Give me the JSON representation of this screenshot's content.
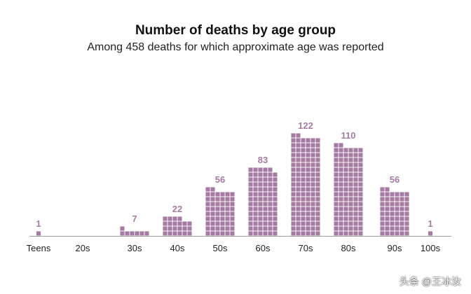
{
  "chart_data": {
    "type": "bar",
    "title": "Number of deaths by age group",
    "subtitle": "Among 458 deaths for which approximate age was reported",
    "categories": [
      "Teens",
      "20s",
      "30s",
      "40s",
      "50s",
      "60s",
      "70s",
      "80s",
      "90s",
      "100s"
    ],
    "values": [
      1,
      0,
      7,
      22,
      56,
      83,
      122,
      110,
      56,
      1
    ],
    "unit_per_square": 1,
    "squares_per_row": 6,
    "color": "#a57aa3",
    "label_color": "#a57aa3",
    "xlabel": "",
    "ylabel": ""
  },
  "watermark": "头条 @王冰汝"
}
